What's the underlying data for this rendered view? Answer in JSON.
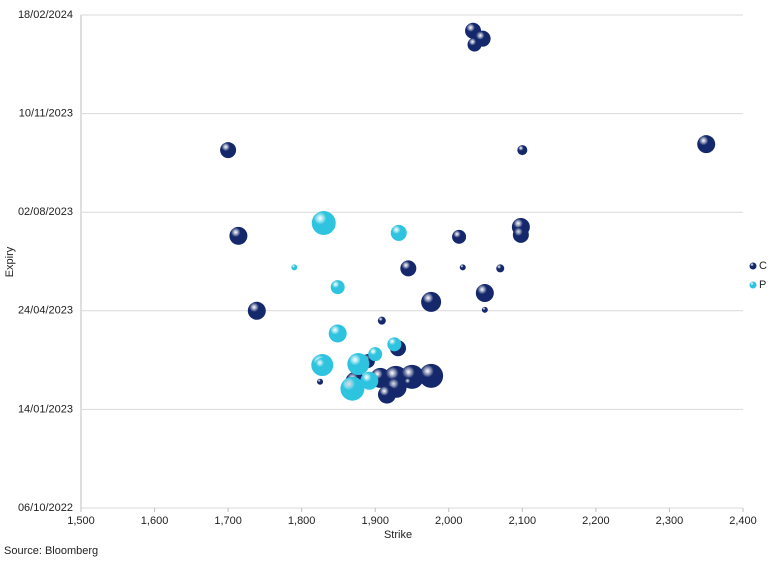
{
  "chart_data": {
    "type": "bubble",
    "x_label": "Strike",
    "y_label": "Expiry",
    "source": "Source: Bloomberg",
    "xlim": [
      1500,
      2400
    ],
    "xticks": [
      {
        "value": 1500,
        "label": "1,500"
      },
      {
        "value": 1600,
        "label": "1,600"
      },
      {
        "value": 1700,
        "label": "1,700"
      },
      {
        "value": 1800,
        "label": "1,800"
      },
      {
        "value": 1900,
        "label": "1,900"
      },
      {
        "value": 2000,
        "label": "2,000"
      },
      {
        "value": 2100,
        "label": "2,100"
      },
      {
        "value": 2200,
        "label": "2,200"
      },
      {
        "value": 2300,
        "label": "2,300"
      },
      {
        "value": 2400,
        "label": "2,400"
      }
    ],
    "ylim": [
      "06/10/2022",
      "18/02/2024"
    ],
    "yticks": [
      "06/10/2022",
      "14/01/2023",
      "24/04/2023",
      "02/08/2023",
      "10/11/2023",
      "18/02/2024"
    ],
    "grid": true,
    "legend": "right",
    "series": [
      {
        "name": "C",
        "color": "#14286b",
        "x": [
          2033,
          2046,
          2035,
          1700,
          2100,
          2350,
          1714,
          2014,
          2098,
          2098,
          1945,
          2019,
          2070,
          2049,
          1976,
          2049,
          1739,
          1909,
          1931,
          1825,
          1873,
          1907,
          1928,
          1950,
          1976,
          1929,
          1916,
          1946,
          1890
        ],
        "y": [
          "02/02/2024",
          "25/01/2024",
          "19/01/2024",
          "04/10/2023",
          "04/10/2023",
          "10/10/2023",
          "09/07/2023",
          "08/07/2023",
          "18/07/2023",
          "10/07/2023",
          "06/06/2023",
          "07/06/2023",
          "06/06/2023",
          "12/05/2023",
          "03/05/2023",
          "25/04/2023",
          "24/04/2023",
          "14/04/2023",
          "17/03/2023",
          "11/02/2023",
          "11/02/2023",
          "15/02/2023",
          "15/02/2023",
          "16/02/2023",
          "17/02/2023",
          "05/02/2023",
          "29/01/2023",
          "10/02/2023",
          "04/03/2023"
        ],
        "size": [
          8,
          8,
          7,
          8,
          5,
          9,
          9,
          7,
          9,
          8,
          8,
          3,
          4,
          9,
          10,
          3,
          9,
          4,
          8,
          3,
          10,
          10,
          12,
          12,
          12,
          10,
          9,
          5,
          7
        ]
      },
      {
        "name": "P",
        "color": "#2ec4e0",
        "x": [
          1830,
          1932,
          1790,
          1849,
          1849,
          1900,
          1926,
          1828,
          1877,
          1869,
          1892,
          1828
        ],
        "y": [
          "22/07/2023",
          "12/07/2023",
          "07/06/2023",
          "18/05/2023",
          "01/04/2023",
          "11/03/2023",
          "21/03/2023",
          "28/02/2023",
          "01/03/2023",
          "04/02/2023",
          "12/02/2023",
          "27/02/2023"
        ],
        "size": [
          12,
          8,
          3,
          7,
          9,
          7,
          7,
          11,
          11,
          12,
          9,
          8
        ]
      }
    ]
  }
}
